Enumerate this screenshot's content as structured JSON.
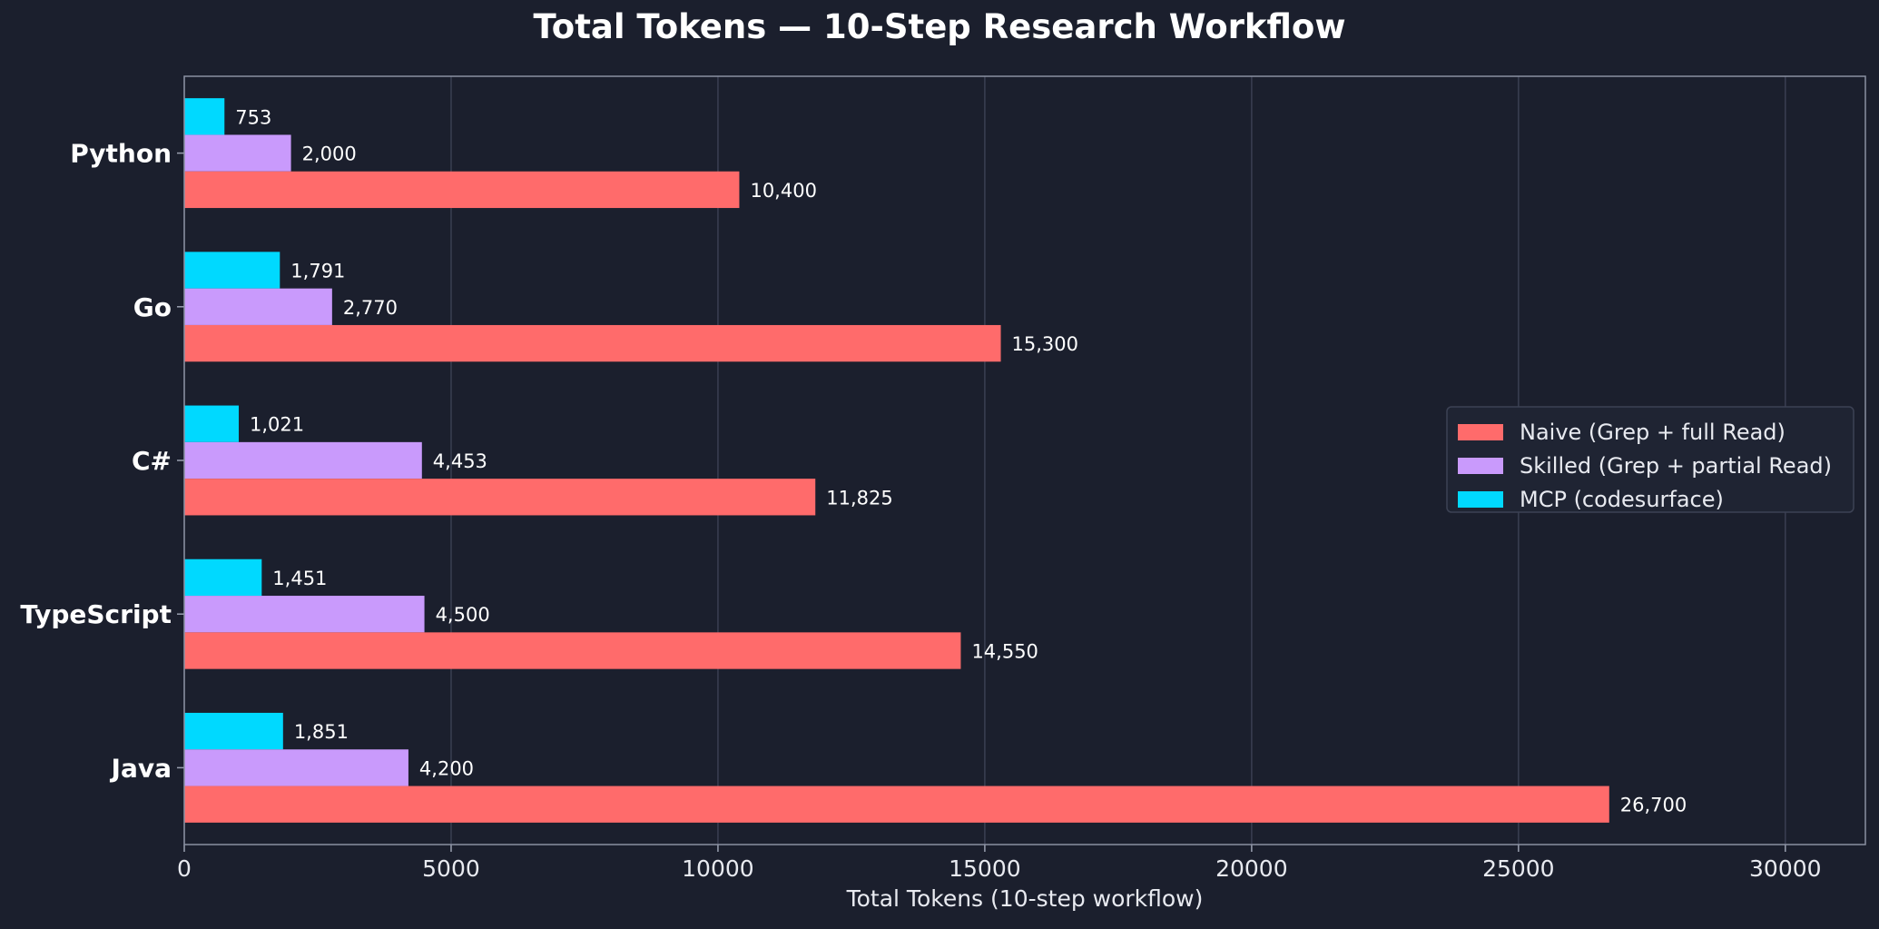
{
  "chart_data": {
    "type": "bar",
    "orientation": "horizontal",
    "title": "Total Tokens — 10-Step Research Workflow",
    "xlabel": "Total Tokens (10-step workflow)",
    "ylabel": "",
    "categories": [
      "Python",
      "Go",
      "C#",
      "TypeScript",
      "Java"
    ],
    "xlim": [
      0,
      31500
    ],
    "xticks": [
      0,
      5000,
      10000,
      15000,
      20000,
      25000,
      30000
    ],
    "xtick_labels": [
      "0",
      "5000",
      "10000",
      "15000",
      "20000",
      "25000",
      "30000"
    ],
    "grid": "vertical",
    "legend_position": "center-right",
    "series": [
      {
        "name": "Naive (Grep + full Read)",
        "color": "#ff6b6b",
        "values": [
          10400,
          15300,
          11825,
          14550,
          26700
        ],
        "labels": [
          "10,400",
          "15,300",
          "11,825",
          "14,550",
          "26,700"
        ]
      },
      {
        "name": "Skilled (Grep + partial Read)",
        "color": "#c99afc",
        "values": [
          2000,
          2770,
          4453,
          4500,
          4200
        ],
        "labels": [
          "2,000",
          "2,770",
          "4,453",
          "4,500",
          "4,200"
        ]
      },
      {
        "name": "MCP (codesurface)",
        "color": "#00d9ff",
        "values": [
          753,
          1791,
          1021,
          1451,
          1851
        ],
        "labels": [
          "753",
          "1,791",
          "1,021",
          "1,451",
          "1,851"
        ]
      }
    ]
  }
}
